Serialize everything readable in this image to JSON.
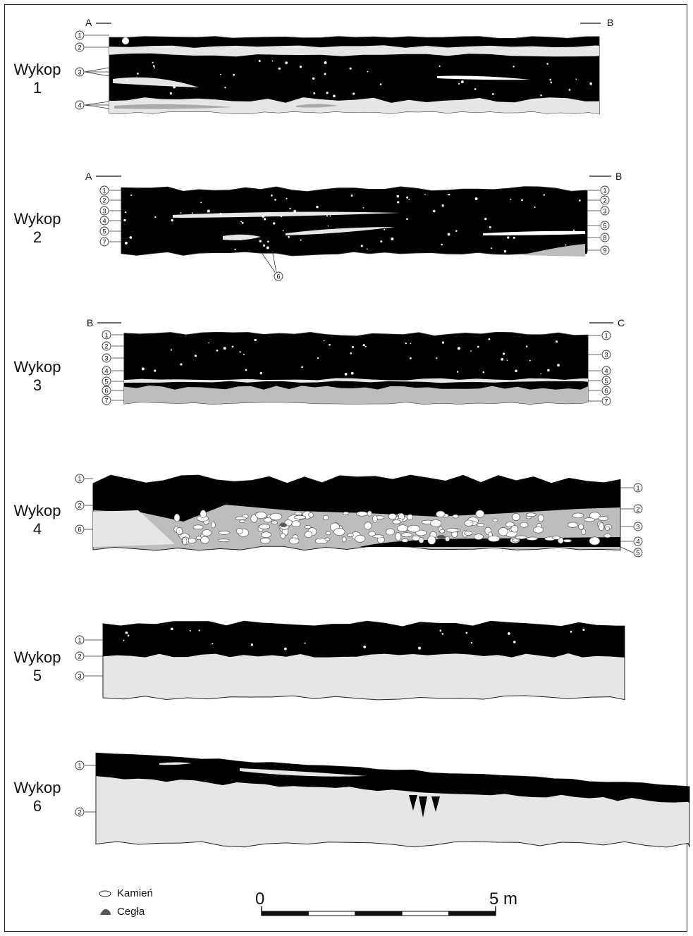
{
  "colors": {
    "fill": "#000000",
    "light": "#e6e6e6",
    "mid": "#bdbdbd",
    "outline": "#222222",
    "stone": "#ffffff",
    "brick": "#555555"
  },
  "trenches": [
    {
      "id": 1,
      "label": "Wykop\n1",
      "end_left": "A",
      "end_right": "B",
      "left_markers": [
        "1",
        "2",
        "3",
        "4"
      ],
      "right_markers": []
    },
    {
      "id": 2,
      "label": "Wykop\n2",
      "end_left": "A",
      "end_right": "B",
      "left_markers": [
        "1",
        "2",
        "3",
        "4",
        "5",
        "7"
      ],
      "right_markers": [
        "1",
        "2",
        "3",
        "5",
        "8",
        "9"
      ],
      "bottom_markers": [
        "6"
      ]
    },
    {
      "id": 3,
      "label": "Wykop\n3",
      "end_left": "B",
      "end_right": "C",
      "left_markers": [
        "1",
        "2",
        "3",
        "4",
        "5",
        "6",
        "7"
      ],
      "right_markers": [
        "1",
        "3",
        "4",
        "5",
        "6",
        "7"
      ]
    },
    {
      "id": 4,
      "label": "Wykop\n4",
      "end_left": "",
      "end_right": "",
      "left_markers": [
        "1",
        "2",
        "6"
      ],
      "right_markers": [
        "1",
        "2",
        "3",
        "4",
        "5"
      ]
    },
    {
      "id": 5,
      "label": "Wykop\n5",
      "end_left": "",
      "end_right": "",
      "left_markers": [
        "1",
        "2",
        "3"
      ],
      "right_markers": []
    },
    {
      "id": 6,
      "label": "Wykop\n6",
      "end_left": "",
      "end_right": "",
      "left_markers": [
        "1",
        "2"
      ],
      "right_markers": []
    }
  ],
  "legend": [
    {
      "label": "Kamień",
      "icon": "stone-icon"
    },
    {
      "label": "Cegła",
      "icon": "brick-icon"
    }
  ],
  "scale": {
    "start_label": "0",
    "end_label": "5 m",
    "length_m": 5,
    "segments": 5
  }
}
